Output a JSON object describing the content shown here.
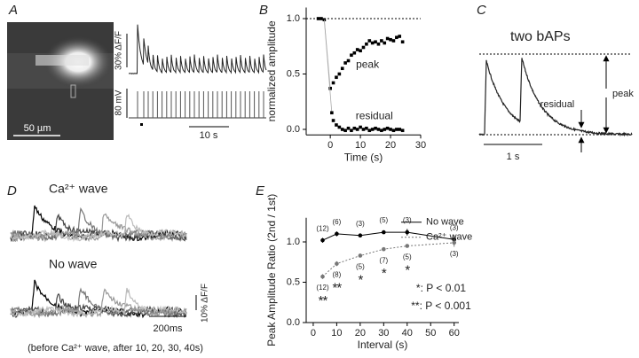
{
  "figure": {
    "letters": [
      "A",
      "B",
      "C",
      "D",
      "E"
    ],
    "A": {
      "scale_bar": "50 µm",
      "fluo_scale": "30% ΔF/F",
      "volt_scale": "80 mV",
      "time_scale": "10 s"
    },
    "C": {
      "title": "two bAPs",
      "residual": "residual",
      "peak": "peak",
      "time_scale": "1 s"
    },
    "D": {
      "wave": "Ca²⁺ wave",
      "no_wave": "No wave",
      "fluo_scale": "10% ΔF/F",
      "time_scale": "200ms",
      "caption": "(before Ca²⁺ wave, after 10, 20, 30, 40s)"
    }
  },
  "chart_data": [
    {
      "panel": "B",
      "type": "scatter",
      "xlabel": "Time (s)",
      "ylabel": "normalized amplitude",
      "xlim": [
        -8,
        30
      ],
      "xticks": [
        0,
        10,
        20,
        30
      ],
      "ylim": [
        -0.05,
        1.1
      ],
      "yticks": [
        {
          "value": 0,
          "label": "0.0"
        },
        {
          "value": 0.5,
          "label": "0.5"
        },
        {
          "value": 1,
          "label": "1.0"
        }
      ],
      "hline": 1,
      "series": [
        {
          "name": "peak",
          "color": "#000000",
          "x": [
            -4,
            -3,
            -2,
            0,
            1,
            2,
            3,
            4,
            5,
            6,
            7,
            8,
            9,
            10,
            11,
            12,
            13,
            14,
            15,
            16,
            17,
            18,
            19,
            20,
            21,
            22,
            23,
            24
          ],
          "values": [
            1.0,
            1.0,
            0.99,
            0.37,
            0.42,
            0.47,
            0.5,
            0.55,
            0.6,
            0.62,
            0.67,
            0.69,
            0.72,
            0.71,
            0.74,
            0.77,
            0.8,
            0.78,
            0.79,
            0.77,
            0.8,
            0.78,
            0.82,
            0.81,
            0.8,
            0.83,
            0.84,
            0.79
          ]
        },
        {
          "name": "residual",
          "color": "#000000",
          "x": [
            0.5,
            1,
            2,
            3,
            4,
            5,
            6,
            7,
            8,
            9,
            10,
            11,
            12,
            13,
            14,
            15,
            16,
            17,
            18,
            19,
            20,
            21,
            22,
            23,
            24
          ],
          "values": [
            0.15,
            0.08,
            0.04,
            0.02,
            0.0,
            -0.01,
            0.01,
            -0.01,
            0.01,
            0.0,
            0.02,
            0.0,
            0.01,
            -0.01,
            0.0,
            0.01,
            0.0,
            -0.01,
            0.0,
            0.01,
            0.0,
            -0.01,
            0.0,
            0.0,
            -0.01
          ]
        }
      ]
    },
    {
      "panel": "E",
      "type": "line",
      "xlabel": "Interval (s)",
      "ylabel": "Peak Amplitude Ratio (2nd / 1st)",
      "xlim": [
        -3,
        62
      ],
      "xticks": [
        0,
        10,
        20,
        30,
        40,
        50,
        60
      ],
      "ylim": [
        0,
        1.3
      ],
      "yticks": [
        {
          "value": 0,
          "label": "0.0"
        },
        {
          "value": 0.5,
          "label": "0.5"
        },
        {
          "value": 1,
          "label": "1.0"
        }
      ],
      "legend": "upper right",
      "x": [
        4,
        10,
        20,
        30,
        40,
        60
      ],
      "series": [
        {
          "name": "No wave",
          "color": "#000000",
          "dash": "solid",
          "values": [
            1.02,
            1.1,
            1.08,
            1.12,
            1.12,
            1.03
          ],
          "errors": [
            0.03,
            0.03,
            0.02,
            0.02,
            0.04,
            0.05
          ],
          "n_labels": [
            "(12)",
            "(6)",
            "(3)",
            "(5)",
            "(3)",
            "(3)"
          ]
        },
        {
          "name": "Ca²⁺ wave",
          "color": "#777777",
          "dash": "dotted",
          "values": [
            0.57,
            0.73,
            0.83,
            0.91,
            0.95,
            0.99
          ],
          "errors": [
            0.03,
            0.03,
            0.02,
            0.02,
            0.02,
            0.05
          ],
          "n_labels": [
            "(12)",
            "(8)",
            "(5)",
            "(7)",
            "(5)",
            "(3)"
          ]
        }
      ],
      "significance": [
        "**",
        "**",
        "*",
        "*",
        "*",
        null
      ],
      "notes": [
        "*: P < 0.01",
        "**: P < 0.001"
      ]
    }
  ]
}
